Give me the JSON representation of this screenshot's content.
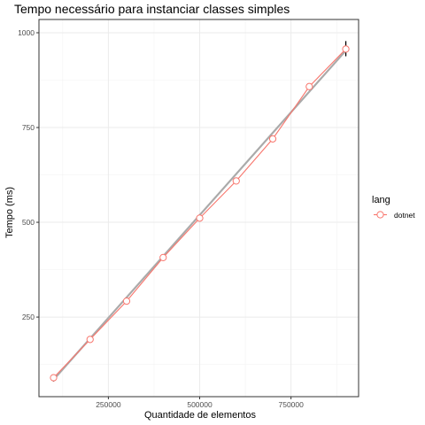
{
  "chart_data": {
    "type": "line",
    "title": "Tempo necessário para instanciar classes simples",
    "xlabel": "Quantidade de elementos",
    "ylabel": "Tempo (ms)",
    "xlim": [
      60000,
      935000
    ],
    "ylim": [
      65000,
      1035
    ],
    "xticks": [
      250000,
      500000,
      750000
    ],
    "xtick_labels": [
      "250000",
      "500000",
      "750000"
    ],
    "yticks": [
      250,
      500,
      750,
      1000
    ],
    "ytick_labels": [
      "250",
      "500",
      "750",
      "1000"
    ],
    "grid": true,
    "legend": {
      "title": "lang",
      "position": "right"
    },
    "series": [
      {
        "name": "dotnet",
        "color": "#f8766d",
        "x": [
          100000,
          200000,
          300000,
          400000,
          500000,
          600000,
          700000,
          800000,
          900000
        ],
        "y": [
          90,
          191,
          292,
          407,
          511,
          609,
          720,
          858,
          957
        ],
        "error": [
          [
            80,
            98
          ],
          [
            186,
            196
          ],
          [
            287,
            297
          ],
          [
            402,
            412
          ],
          [
            506,
            516
          ],
          [
            604,
            614
          ],
          [
            712,
            728
          ],
          [
            853,
            863
          ],
          [
            938,
            978
          ]
        ]
      }
    ],
    "trend": {
      "color": "#aaaaaa",
      "x": [
        100000,
        900000
      ],
      "y": [
        85,
        953
      ]
    }
  }
}
